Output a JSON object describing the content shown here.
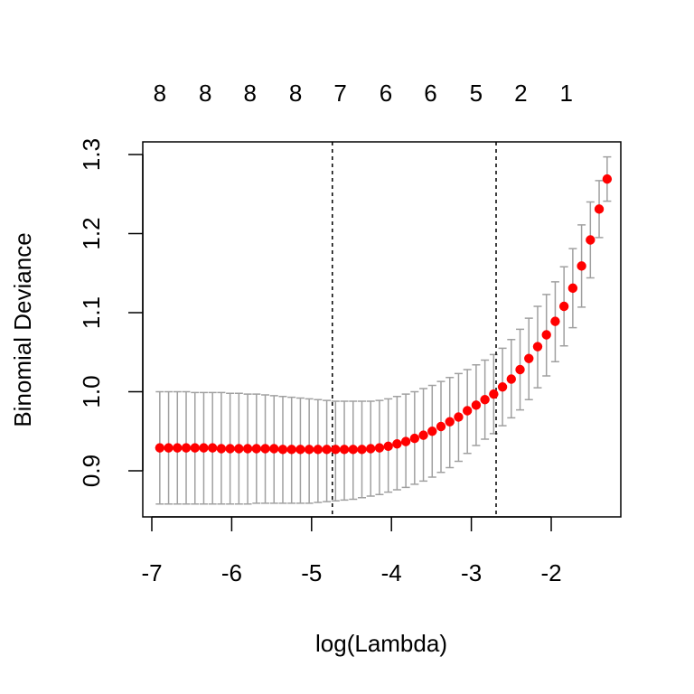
{
  "chart_data": {
    "type": "scatter",
    "title": "",
    "xlabel": "log(Lambda)",
    "ylabel": "Binomial Deviance",
    "xlim": [
      -7.0,
      -1.3
    ],
    "ylim": [
      0.84,
      1.31
    ],
    "x_ticks": [
      -7,
      -6,
      -5,
      -4,
      -3,
      -2
    ],
    "x_tick_labels": [
      "-7",
      "-6",
      "-5",
      "-4",
      "-3",
      "-2"
    ],
    "y_ticks": [
      0.9,
      1.0,
      1.1,
      1.2,
      1.3
    ],
    "y_tick_labels": [
      "0.9",
      "1.0",
      "1.1",
      "1.2",
      "1.3"
    ],
    "top_axis": {
      "positions": [
        -6.9,
        -6.33,
        -5.77,
        -5.2,
        -4.64,
        -4.07,
        -3.51,
        -2.94,
        -2.38,
        -1.81
      ],
      "labels": [
        "8",
        "8",
        "8",
        "8",
        "7",
        "6",
        "6",
        "5",
        "2",
        "1"
      ]
    },
    "reference_lines": [
      {
        "name": "lambda.min",
        "x": -4.74
      },
      {
        "name": "lambda.1se",
        "x": -2.69
      }
    ],
    "point_color": "#ff0000",
    "errorbar_color": "#a0a0a0",
    "grid": false,
    "series": [
      {
        "x": [
          -6.9,
          -6.79,
          -6.68,
          -6.57,
          -6.46,
          -6.35,
          -6.24,
          -6.13,
          -6.02,
          -5.91,
          -5.8,
          -5.69,
          -5.58,
          -5.47,
          -5.36,
          -5.25,
          -5.14,
          -5.03,
          -4.92,
          -4.81,
          -4.7,
          -4.59,
          -4.48,
          -4.37,
          -4.26,
          -4.15,
          -4.04,
          -3.93,
          -3.82,
          -3.71,
          -3.6,
          -3.49,
          -3.38,
          -3.27,
          -3.16,
          -3.05,
          -2.94,
          -2.83,
          -2.72,
          -2.61,
          -2.5,
          -2.39,
          -2.28,
          -2.17,
          -2.06,
          -1.95,
          -1.84,
          -1.73,
          -1.62,
          -1.51,
          -1.4
        ],
        "y": [
          0.929,
          0.929,
          0.929,
          0.929,
          0.929,
          0.929,
          0.929,
          0.928,
          0.928,
          0.928,
          0.928,
          0.928,
          0.928,
          0.928,
          0.927,
          0.927,
          0.927,
          0.927,
          0.927,
          0.927,
          0.927,
          0.927,
          0.927,
          0.927,
          0.928,
          0.929,
          0.931,
          0.934,
          0.937,
          0.941,
          0.945,
          0.95,
          0.956,
          0.962,
          0.968,
          0.976,
          0.983,
          0.99,
          0.997,
          1.006,
          1.016,
          1.028,
          1.042,
          1.057,
          1.072,
          1.089,
          1.108,
          1.131,
          1.159,
          1.192,
          1.231
        ],
        "y_upper": [
          1.0,
          1.0,
          1.0,
          1.0,
          0.999,
          0.999,
          0.999,
          0.999,
          0.998,
          0.998,
          0.997,
          0.997,
          0.996,
          0.995,
          0.994,
          0.993,
          0.992,
          0.991,
          0.99,
          0.989,
          0.988,
          0.988,
          0.988,
          0.988,
          0.988,
          0.989,
          0.991,
          0.994,
          0.997,
          1.0,
          1.004,
          1.008,
          1.013,
          1.018,
          1.023,
          1.028,
          1.034,
          1.04,
          1.047,
          1.055,
          1.066,
          1.079,
          1.093,
          1.108,
          1.123,
          1.139,
          1.158,
          1.181,
          1.211,
          1.24,
          1.267
        ],
        "y_lower": [
          0.858,
          0.858,
          0.858,
          0.858,
          0.858,
          0.858,
          0.858,
          0.858,
          0.858,
          0.858,
          0.858,
          0.859,
          0.859,
          0.859,
          0.859,
          0.859,
          0.859,
          0.859,
          0.86,
          0.861,
          0.862,
          0.863,
          0.864,
          0.866,
          0.868,
          0.87,
          0.873,
          0.876,
          0.879,
          0.883,
          0.887,
          0.892,
          0.898,
          0.904,
          0.912,
          0.922,
          0.932,
          0.94,
          0.947,
          0.957,
          0.967,
          0.977,
          0.99,
          1.005,
          1.02,
          1.038,
          1.058,
          1.081,
          1.107,
          1.144,
          1.195
        ]
      }
    ],
    "extra_point": {
      "x": -1.3,
      "y": 1.269,
      "y_upper": 1.297,
      "y_lower": 1.241
    }
  }
}
